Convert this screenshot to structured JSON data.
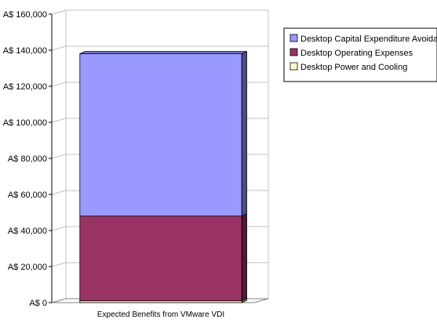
{
  "chart_data": {
    "type": "bar",
    "stacked": true,
    "three_d": true,
    "title": "",
    "xlabel": "",
    "ylabel": "",
    "categories": [
      "Expected Benefits from VMware VDI"
    ],
    "series": [
      {
        "name": "Desktop Power and Cooling",
        "values": [
          1000
        ],
        "color": "#ffffcc"
      },
      {
        "name": "Desktop Operating Expenses",
        "values": [
          47000
        ],
        "color": "#993366"
      },
      {
        "name": "Desktop Capital Expenditure Avoidance",
        "values": [
          90000
        ],
        "color": "#9999ff"
      }
    ],
    "ylim": [
      0,
      160000
    ],
    "yticks": [
      0,
      20000,
      40000,
      60000,
      80000,
      100000,
      120000,
      140000,
      160000
    ],
    "ytick_labels": [
      "A$ 0",
      "A$ 20,000",
      "A$ 40,000",
      "A$ 60,000",
      "A$ 80,000",
      "A$ 100,000",
      "A$ 120,000",
      "A$ 140,000",
      "A$ 160,000"
    ],
    "grid": true,
    "legend_position": "top-right",
    "legend_order": [
      "Desktop Capital Expenditure Avoidance",
      "Desktop Operating Expenses",
      "Desktop Power and Cooling"
    ]
  }
}
